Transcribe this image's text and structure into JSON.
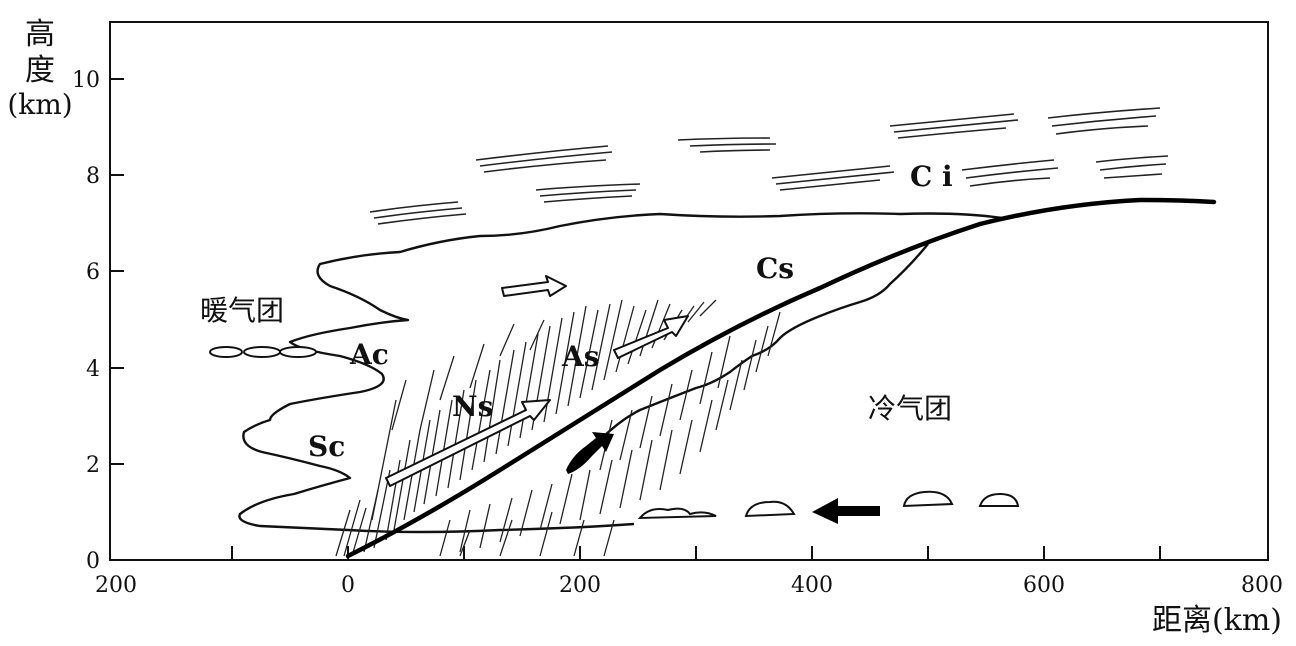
{
  "axis": {
    "y_label_line1": "高",
    "y_label_line2": "度",
    "y_label_line3": "(km)",
    "x_label": "距离(km)",
    "y_ticks": [
      "0",
      "2",
      "4",
      "6",
      "8",
      "10"
    ],
    "x_ticks": [
      "200",
      "0",
      "200",
      "400",
      "600",
      "800"
    ]
  },
  "labels": {
    "ci": "C i",
    "cs": "Cs",
    "as": "As",
    "ns": "Ns",
    "ac": "Ac",
    "sc": "Sc",
    "warm_air_mass": "暖气团",
    "cold_air_mass": "冷气团"
  },
  "colors": {
    "ink": "#111111",
    "background": "#ffffff"
  }
}
